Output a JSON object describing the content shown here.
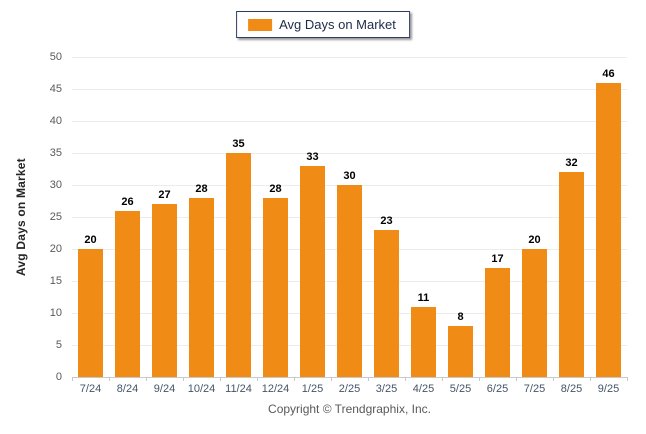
{
  "chart_data": {
    "type": "bar",
    "title": "",
    "legend": "Avg Days on Market",
    "ylabel": "Avg Days on Market",
    "xlabel": "",
    "categories": [
      "7/24",
      "8/24",
      "9/24",
      "10/24",
      "11/24",
      "12/24",
      "1/25",
      "2/25",
      "3/25",
      "4/25",
      "5/25",
      "6/25",
      "7/25",
      "8/25",
      "9/25"
    ],
    "values": [
      20,
      26,
      27,
      28,
      35,
      28,
      33,
      30,
      23,
      11,
      8,
      17,
      20,
      32,
      46
    ],
    "ylim": [
      0,
      50
    ],
    "ytick_step": 5,
    "grid": "horizontal",
    "legend_position": "top-center"
  },
  "footer": {
    "copyright": "Copyright © Trendgraphix, Inc."
  },
  "colors": {
    "bar": "#F08C15",
    "grid": "#ececec",
    "axis": "#c9c9c9",
    "ytick_label": "#595959",
    "xtick_label": "#44546a",
    "value_label": "#000000",
    "legend_border": "#2c3c63",
    "legend_text": "#1c2b4a",
    "footer_text": "#595959",
    "background": "#ffffff"
  }
}
